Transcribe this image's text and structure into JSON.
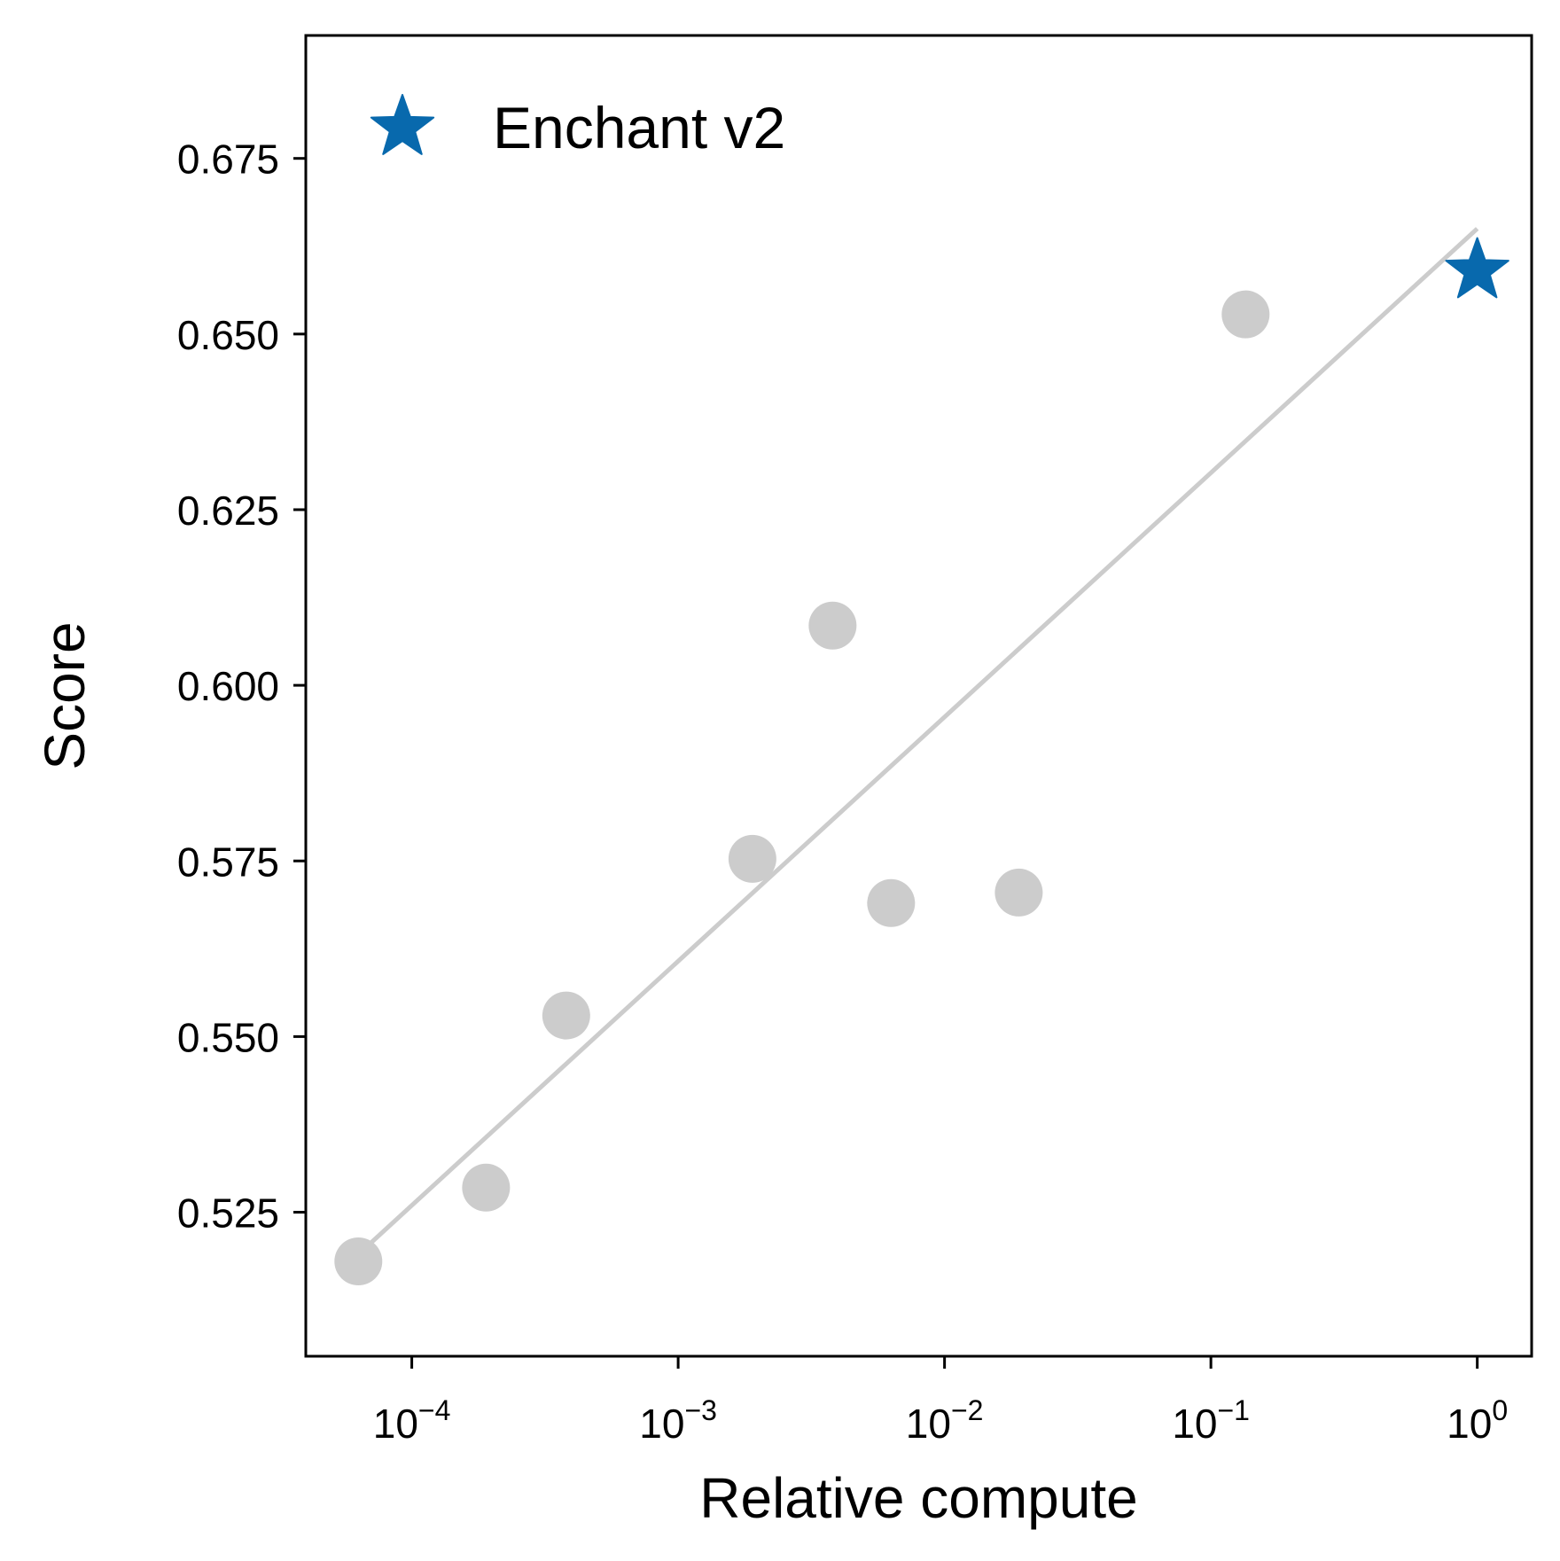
{
  "chart_data": {
    "type": "scatter",
    "xscale": "log",
    "xlabel": "Relative compute",
    "ylabel": "Score",
    "xlim": [
      4e-05,
      1.6
    ],
    "ylim": [
      0.5045,
      0.6925
    ],
    "x_ticks": [
      {
        "base": "10",
        "exp": "−4",
        "value": 0.0001
      },
      {
        "base": "10",
        "exp": "−3",
        "value": 0.001
      },
      {
        "base": "10",
        "exp": "−2",
        "value": 0.01
      },
      {
        "base": "10",
        "exp": "−1",
        "value": 0.1
      },
      {
        "base": "10",
        "exp": "0",
        "value": 1
      }
    ],
    "y_ticks": [
      "0.525",
      "0.550",
      "0.575",
      "0.600",
      "0.625",
      "0.650",
      "0.675"
    ],
    "legend": {
      "position": "top-left",
      "entries": [
        {
          "label": "Enchant v2",
          "marker": "star",
          "color": "#0869ad"
        }
      ]
    },
    "series": [
      {
        "marker": "circle",
        "color": "#cccccc",
        "points": [
          {
            "x": 6.3e-05,
            "y": 0.518
          },
          {
            "x": 0.00019,
            "y": 0.5285
          },
          {
            "x": 0.00038,
            "y": 0.553
          },
          {
            "x": 0.0019,
            "y": 0.5753
          },
          {
            "x": 0.0038,
            "y": 0.6085
          },
          {
            "x": 0.0063,
            "y": 0.569
          },
          {
            "x": 0.019,
            "y": 0.5705
          },
          {
            "x": 0.135,
            "y": 0.6528
          }
        ]
      },
      {
        "name": "Enchant v2",
        "marker": "star",
        "color": "#0869ad",
        "points": [
          {
            "x": 1.0,
            "y": 0.659
          }
        ]
      }
    ],
    "trend_line": {
      "color": "#cccccc",
      "points": [
        {
          "x": 6.3e-05,
          "y": 0.519
        },
        {
          "x": 1.0,
          "y": 0.665
        }
      ]
    },
    "grid": false
  }
}
